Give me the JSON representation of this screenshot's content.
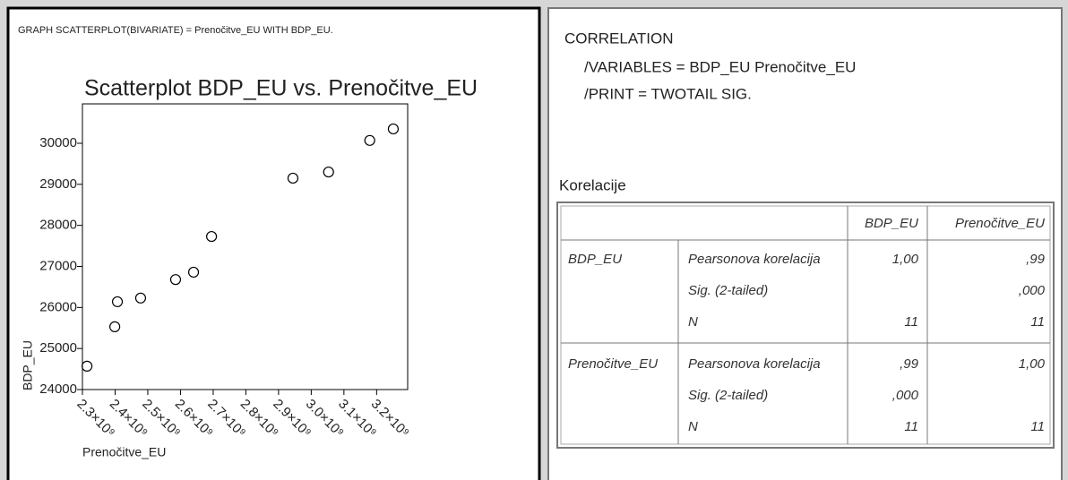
{
  "left_command": "GRAPH SCATTERPLOT(BIVARIATE) = Prenočitve_EU WITH BDP_EU.",
  "chart_data": {
    "type": "scatter",
    "title": "Scatterplot BDP_EU vs. Prenočitve_EU",
    "x_label": "Prenočitve_EU",
    "y_label": "BDP_EU",
    "x": [
      2314000000,
      2399000000,
      2407000000,
      2478000000,
      2585000000,
      2640000000,
      2695000000,
      2944000000,
      3053000000,
      3179000000,
      3251000000
    ],
    "values": [
      24570,
      25530,
      26140,
      26230,
      26680,
      26860,
      27730,
      29150,
      29300,
      30070,
      30350
    ],
    "color": "#000000",
    "xlim": [
      2300000000,
      3295000000
    ],
    "xticks": [
      {
        "value": 2300000000,
        "label": "2.3×10⁹"
      },
      {
        "value": 2400000000,
        "label": "2.4×10⁹"
      },
      {
        "value": 2500000000,
        "label": "2.5×10⁹"
      },
      {
        "value": 2600000000,
        "label": "2.6×10⁹"
      },
      {
        "value": 2700000000,
        "label": "2.7×10⁹"
      },
      {
        "value": 2800000000,
        "label": "2.8×10⁹"
      },
      {
        "value": 2900000000,
        "label": "2.9×10⁹"
      },
      {
        "value": 3000000000,
        "label": "3.0×10⁹"
      },
      {
        "value": 3100000000,
        "label": "3.1×10⁹"
      },
      {
        "value": 3200000000,
        "label": "3.2×10⁹"
      }
    ],
    "ylim": [
      24000,
      30960
    ],
    "yticks": [
      24000,
      25000,
      26000,
      27000,
      28000,
      29000,
      30000
    ],
    "grid": false
  },
  "right_commands": [
    "CORRELATION",
    "/VARIABLES =  BDP_EU Prenočitve_EU",
    "/PRINT = TWOTAIL SIG."
  ],
  "table": {
    "caption": "Korelacije",
    "columns": [
      "BDP_EU",
      "Prenočitve_EU"
    ],
    "groups": [
      {
        "name": "BDP_EU",
        "stats": [
          "Pearsonova korelacija",
          "Sig. (2-tailed)",
          "N"
        ],
        "values": [
          [
            "1,00",
            ",99"
          ],
          [
            null,
            ",000"
          ],
          [
            "11",
            "11"
          ]
        ]
      },
      {
        "name": "Prenočitve_EU",
        "stats": [
          "Pearsonova korelacija",
          "Sig. (2-tailed)",
          "N"
        ],
        "values": [
          [
            ",99",
            "1,00"
          ],
          [
            ",000",
            null
          ],
          [
            "11",
            "11"
          ]
        ]
      }
    ]
  }
}
